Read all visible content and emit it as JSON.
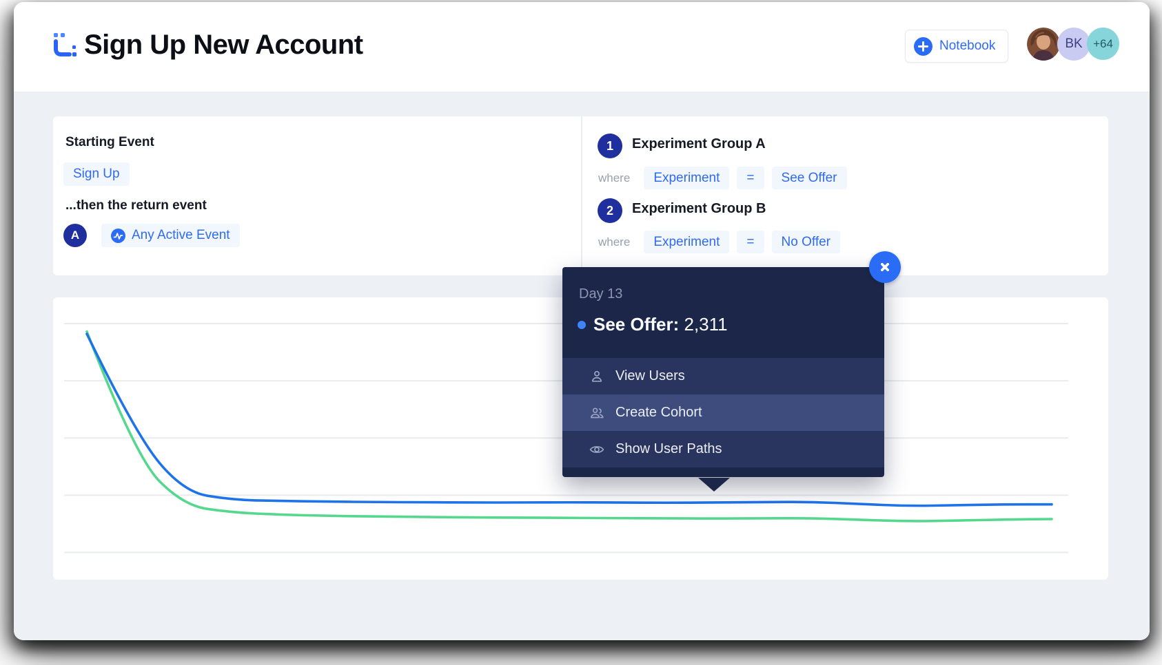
{
  "header": {
    "title": "Sign Up New Account",
    "notebook_button_label": "Notebook",
    "avatars": {
      "initials_badge": "BK",
      "overflow_badge": "+64"
    }
  },
  "starting_event_panel": {
    "section_title": "Starting Event",
    "start_event_chip": "Sign Up",
    "return_event_label": "...then the return event",
    "return_step_badge": "A",
    "return_event_chip": "Any Active Event"
  },
  "experiment_panel": {
    "groups": [
      {
        "badge": "1",
        "name": "Experiment Group A",
        "where_label": "where",
        "property_chip": "Experiment",
        "operator_chip": "=",
        "value_chip": "See Offer"
      },
      {
        "badge": "2",
        "name": "Experiment Group B",
        "where_label": "where",
        "property_chip": "Experiment",
        "operator_chip": "=",
        "value_chip": "No Offer"
      }
    ]
  },
  "tooltip": {
    "day_label": "Day 13",
    "series_label": "See Offer:",
    "series_value": "2,311",
    "menu": [
      {
        "icon": "user-icon",
        "label": "View Users",
        "highlighted": false
      },
      {
        "icon": "users-icon",
        "label": "Create Cohort",
        "highlighted": true
      },
      {
        "icon": "eye-icon",
        "label": "Show User Paths",
        "highlighted": false
      }
    ]
  },
  "chart_data": {
    "type": "line",
    "x": [
      0,
      1,
      2,
      3,
      4,
      5,
      6,
      7,
      8,
      9,
      10,
      11,
      12,
      13,
      14,
      15,
      16,
      17,
      18,
      19,
      20
    ],
    "x_unit": "day",
    "series": [
      {
        "name": "See Offer",
        "color": "#1e73e8",
        "values_pct": [
          95.5,
          52,
          26.5,
          23.0,
          22.5,
          22.2,
          22.0,
          21.9,
          21.8,
          21.8,
          21.9,
          21.8,
          21.7,
          21.8,
          22.0,
          22.1,
          21.2,
          20.3,
          20.6,
          21.0,
          21.0
        ]
      },
      {
        "name": "No Offer",
        "color": "#55d88e",
        "values_pct": [
          96.5,
          42,
          20.5,
          17.5,
          16.5,
          16.0,
          15.7,
          15.5,
          15.3,
          15.2,
          15.1,
          15.0,
          14.9,
          14.8,
          14.9,
          15.0,
          14.3,
          13.6,
          13.9,
          14.4,
          14.6
        ]
      }
    ],
    "ylim": [
      0,
      100
    ],
    "grid": "horizontal",
    "gridline_values": [
      0,
      25,
      50,
      75,
      100
    ],
    "axis_labels_visible": false,
    "hover_point": {
      "day": 13,
      "series": "See Offer",
      "value": 2311
    }
  },
  "colors": {
    "accent_blue": "#2e6bf0",
    "badge_indigo": "#202f9e",
    "tooltip_bg": "#1c2648",
    "tooltip_row_bg": "#2a355f",
    "tooltip_row_highlight": "#3d4c7d",
    "line_blue": "#1e73e8",
    "line_green": "#55d88e",
    "canvas_gray": "#edf0f5"
  }
}
